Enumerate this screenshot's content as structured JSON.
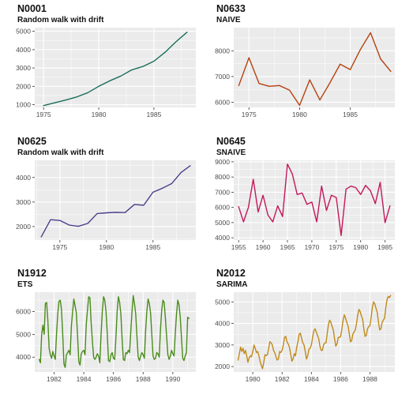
{
  "chart_data": [
    {
      "type": "line",
      "title": "N0001",
      "subtitle": "Random walk with drift",
      "color": "#1b6e5a",
      "x": [
        1975,
        1976,
        1977,
        1978,
        1979,
        1980,
        1981,
        1982,
        1983,
        1984,
        1985,
        1986,
        1987,
        1988
      ],
      "series": [
        {
          "values": [
            950,
            1100,
            1250,
            1420,
            1650,
            2000,
            2300,
            2560,
            2900,
            3080,
            3370,
            3850,
            4430,
            4950
          ]
        }
      ],
      "xlim": [
        1974.2,
        1988.8
      ],
      "ylim": [
        850,
        5200
      ],
      "xticks": [
        1975,
        1980,
        1985
      ],
      "yticks": [
        1000,
        2000,
        3000,
        4000,
        5000
      ],
      "xlabel": "",
      "ylabel": "",
      "grid": true
    },
    {
      "type": "line",
      "title": "N0633",
      "subtitle": "NAIVE",
      "color": "#b5410f",
      "x": [
        1974,
        1975,
        1976,
        1977,
        1978,
        1979,
        1980,
        1981,
        1982,
        1983,
        1984,
        1985,
        1986,
        1987,
        1988,
        1989
      ],
      "series": [
        {
          "values": [
            6650,
            7730,
            6730,
            6620,
            6650,
            6470,
            5880,
            6870,
            6090,
            6760,
            7480,
            7270,
            8050,
            8700,
            7680,
            7200
          ]
        }
      ],
      "xlim": [
        1973.5,
        1989.4
      ],
      "ylim": [
        5800,
        8900
      ],
      "xticks": [
        1975,
        1980,
        1985
      ],
      "yticks": [
        6000,
        7000,
        8000
      ],
      "xlabel": "",
      "ylabel": "",
      "grid": true
    },
    {
      "type": "line",
      "title": "N0625",
      "subtitle": "Random walk with drift",
      "color": "#4d3f8c",
      "x": [
        1973,
        1974,
        1975,
        1976,
        1977,
        1978,
        1979,
        1980,
        1981,
        1982,
        1983,
        1984,
        1985,
        1986,
        1987,
        1988,
        1989
      ],
      "series": [
        {
          "values": [
            1580,
            2280,
            2250,
            2060,
            2010,
            2130,
            2530,
            2560,
            2580,
            2570,
            2900,
            2870,
            3400,
            3560,
            3750,
            4200,
            4480
          ]
        }
      ],
      "xlim": [
        1972.3,
        1989.6
      ],
      "ylim": [
        1450,
        4700
      ],
      "xticks": [
        1975,
        1980,
        1985
      ],
      "yticks": [
        2000,
        3000,
        4000
      ],
      "xlabel": "",
      "ylabel": "",
      "grid": true
    },
    {
      "type": "line",
      "title": "N0645",
      "subtitle": "SNAIVE",
      "color": "#c2185b",
      "x": [
        1955,
        1956,
        1957,
        1958,
        1959,
        1960,
        1961,
        1962,
        1963,
        1964,
        1965,
        1966,
        1967,
        1968,
        1969,
        1970,
        1971,
        1972,
        1973,
        1974,
        1975,
        1976,
        1977,
        1978,
        1979,
        1980,
        1981,
        1982,
        1983,
        1984,
        1985,
        1986
      ],
      "series": [
        {
          "values": [
            6050,
            5050,
            6000,
            7850,
            5700,
            6800,
            5500,
            5050,
            6100,
            5400,
            8850,
            8200,
            6850,
            6950,
            6200,
            6350,
            5050,
            7400,
            5800,
            6800,
            6650,
            4150,
            7200,
            7400,
            7300,
            6850,
            7450,
            7100,
            6250,
            7650,
            5000,
            6100
          ]
        }
      ],
      "xlim": [
        1954.0,
        1987.0
      ],
      "ylim": [
        3850,
        9100
      ],
      "xticks": [
        1955,
        1960,
        1965,
        1970,
        1975,
        1980,
        1985
      ],
      "yticks": [
        4000,
        5000,
        6000,
        7000,
        8000,
        9000
      ],
      "xlabel": "",
      "ylabel": "",
      "grid": true
    },
    {
      "type": "line",
      "title": "N1912",
      "subtitle": "ETS",
      "color": "#4a8c1c",
      "x": [
        1981.0,
        1981.0833,
        1981.1667,
        1981.25,
        1981.3333,
        1981.4167,
        1981.5,
        1981.5833,
        1981.6667,
        1981.75,
        1981.8333,
        1981.9167,
        1982.0,
        1982.0833,
        1982.1667,
        1982.25,
        1982.3333,
        1982.4167,
        1982.5,
        1982.5833,
        1982.6667,
        1982.75,
        1982.8333,
        1982.9167,
        1983.0,
        1983.0833,
        1983.1667,
        1983.25,
        1983.3333,
        1983.4167,
        1983.5,
        1983.5833,
        1983.6667,
        1983.75,
        1983.8333,
        1983.9167,
        1984.0,
        1984.0833,
        1984.1667,
        1984.25,
        1984.3333,
        1984.4167,
        1984.5,
        1984.5833,
        1984.6667,
        1984.75,
        1984.8333,
        1984.9167,
        1985.0,
        1985.0833,
        1985.1667,
        1985.25,
        1985.3333,
        1985.4167,
        1985.5,
        1985.5833,
        1985.6667,
        1985.75,
        1985.8333,
        1985.9167,
        1986.0,
        1986.0833,
        1986.1667,
        1986.25,
        1986.3333,
        1986.4167,
        1986.5,
        1986.5833,
        1986.6667,
        1986.75,
        1986.8333,
        1986.9167,
        1987.0,
        1987.0833,
        1987.1667,
        1987.25,
        1987.3333,
        1987.4167,
        1987.5,
        1987.5833,
        1987.6667,
        1987.75,
        1987.8333,
        1987.9167,
        1988.0,
        1988.0833,
        1988.1667,
        1988.25,
        1988.3333,
        1988.4167,
        1988.5,
        1988.5833,
        1988.6667,
        1988.75,
        1988.8333,
        1988.9167,
        1989.0,
        1989.0833,
        1989.1667,
        1989.25,
        1989.3333,
        1989.4167,
        1989.5,
        1989.5833,
        1989.6667,
        1989.75,
        1989.8333,
        1989.9167,
        1990.0,
        1990.0833,
        1990.1667,
        1990.25,
        1990.3333,
        1990.4167,
        1990.5,
        1990.5833,
        1990.6667,
        1990.75,
        1990.8333,
        1990.9167,
        1991.0,
        1991.0833
      ],
      "series": [
        {
          "values": [
            3900,
            3750,
            5000,
            5400,
            5000,
            6350,
            6400,
            5600,
            4400,
            4100,
            3950,
            4250,
            4050,
            3900,
            5000,
            5900,
            6450,
            6500,
            6100,
            5000,
            3700,
            3550,
            4100,
            4200,
            4300,
            4100,
            5350,
            6000,
            6550,
            6250,
            5950,
            4950,
            3800,
            3650,
            4150,
            4250,
            4300,
            4100,
            5400,
            6050,
            6650,
            6600,
            5500,
            4700,
            4000,
            3900,
            4000,
            4150,
            4050,
            3750,
            5000,
            6000,
            6650,
            6500,
            6000,
            5050,
            3850,
            3800,
            4100,
            4200,
            3950,
            3900,
            4850,
            6000,
            6650,
            6400,
            5900,
            4800,
            3900,
            3850,
            4200,
            4150,
            4300,
            4200,
            5100,
            6000,
            6700,
            6350,
            5900,
            4900,
            4000,
            3850,
            4050,
            4200,
            4100,
            3950,
            5150,
            6000,
            6550,
            6350,
            5950,
            5000,
            4050,
            3900,
            3950,
            4200,
            4150,
            4000,
            5200,
            6050,
            6500,
            6400,
            5700,
            4900,
            4100,
            3900,
            4050,
            4300,
            4150,
            4050,
            5050,
            5900,
            6500,
            6300,
            5750,
            4850,
            3950,
            3850,
            4050,
            4200,
            5750,
            5700
          ]
        }
      ],
      "xlim": [
        1980.7,
        1991.55
      ],
      "ylim": [
        3350,
        6850
      ],
      "xticks": [
        1982,
        1984,
        1986,
        1988,
        1990
      ],
      "yticks": [
        4000,
        5000,
        6000
      ],
      "xlabel": "",
      "ylabel": "",
      "grid": true
    },
    {
      "type": "line",
      "title": "N2012",
      "subtitle": "SARIMA",
      "color": "#c08a1a",
      "x": [
        1979.0,
        1979.0833,
        1979.1667,
        1979.25,
        1979.3333,
        1979.4167,
        1979.5,
        1979.5833,
        1979.6667,
        1979.75,
        1979.8333,
        1979.9167,
        1980.0,
        1980.0833,
        1980.1667,
        1980.25,
        1980.3333,
        1980.4167,
        1980.5,
        1980.5833,
        1980.6667,
        1980.75,
        1980.8333,
        1980.9167,
        1981.0,
        1981.0833,
        1981.1667,
        1981.25,
        1981.3333,
        1981.4167,
        1981.5,
        1981.5833,
        1981.6667,
        1981.75,
        1981.8333,
        1981.9167,
        1982.0,
        1982.0833,
        1982.1667,
        1982.25,
        1982.3333,
        1982.4167,
        1982.5,
        1982.5833,
        1982.6667,
        1982.75,
        1982.8333,
        1982.9167,
        1983.0,
        1983.0833,
        1983.1667,
        1983.25,
        1983.3333,
        1983.4167,
        1983.5,
        1983.5833,
        1983.6667,
        1983.75,
        1983.8333,
        1983.9167,
        1984.0,
        1984.0833,
        1984.1667,
        1984.25,
        1984.3333,
        1984.4167,
        1984.5,
        1984.5833,
        1984.6667,
        1984.75,
        1984.8333,
        1984.9167,
        1985.0,
        1985.0833,
        1985.1667,
        1985.25,
        1985.3333,
        1985.4167,
        1985.5,
        1985.5833,
        1985.6667,
        1985.75,
        1985.8333,
        1985.9167,
        1986.0,
        1986.0833,
        1986.1667,
        1986.25,
        1986.3333,
        1986.4167,
        1986.5,
        1986.5833,
        1986.6667,
        1986.75,
        1986.8333,
        1986.9167,
        1987.0,
        1987.0833,
        1987.1667,
        1987.25,
        1987.3333,
        1987.4167,
        1987.5,
        1987.5833,
        1987.6667,
        1987.75,
        1987.8333,
        1987.9167,
        1988.0,
        1988.0833,
        1988.1667,
        1988.25,
        1988.3333,
        1988.4167,
        1988.5,
        1988.5833,
        1988.6667,
        1988.75,
        1988.8333,
        1988.9167,
        1989.0,
        1989.0833,
        1989.1667,
        1989.25,
        1989.3333,
        1989.4167
      ],
      "series": [
        {
          "values": [
            2300,
            2600,
            2900,
            2700,
            2850,
            2600,
            2750,
            2500,
            2200,
            2400,
            2500,
            2450,
            2700,
            3000,
            2850,
            2650,
            2700,
            2500,
            2250,
            2050,
            1900,
            2200,
            2550,
            2500,
            2550,
            2850,
            3150,
            3100,
            3000,
            2750,
            2650,
            2450,
            2300,
            2350,
            2700,
            2650,
            2750,
            3000,
            3350,
            3400,
            3150,
            3050,
            2900,
            2600,
            2250,
            2350,
            2600,
            2500,
            2900,
            3150,
            3500,
            3550,
            3300,
            3100,
            3000,
            2700,
            2350,
            2500,
            2800,
            2850,
            3000,
            3350,
            3650,
            3750,
            3600,
            3450,
            3300,
            2950,
            2750,
            2750,
            3000,
            3100,
            3100,
            3550,
            3950,
            4150,
            4050,
            3850,
            3700,
            3300,
            2950,
            3050,
            3350,
            3350,
            3400,
            3750,
            4150,
            4400,
            4250,
            4050,
            3900,
            3550,
            3150,
            3200,
            3500,
            3600,
            3700,
            4000,
            4400,
            4650,
            4550,
            4350,
            4200,
            3750,
            3400,
            3450,
            3750,
            3850,
            3900,
            4300,
            4750,
            5000,
            4900,
            4700,
            4500,
            4050,
            3700,
            3750,
            4050,
            4150,
            4250,
            4750,
            5100,
            5250,
            5200,
            5300
          ]
        }
      ],
      "xlim": [
        1978.7,
        1989.7
      ],
      "ylim": [
        1750,
        5450
      ],
      "xticks": [
        1980,
        1982,
        1984,
        1986,
        1988
      ],
      "yticks": [
        2000,
        3000,
        4000,
        5000
      ],
      "xlabel": "",
      "ylabel": "",
      "grid": true
    }
  ]
}
